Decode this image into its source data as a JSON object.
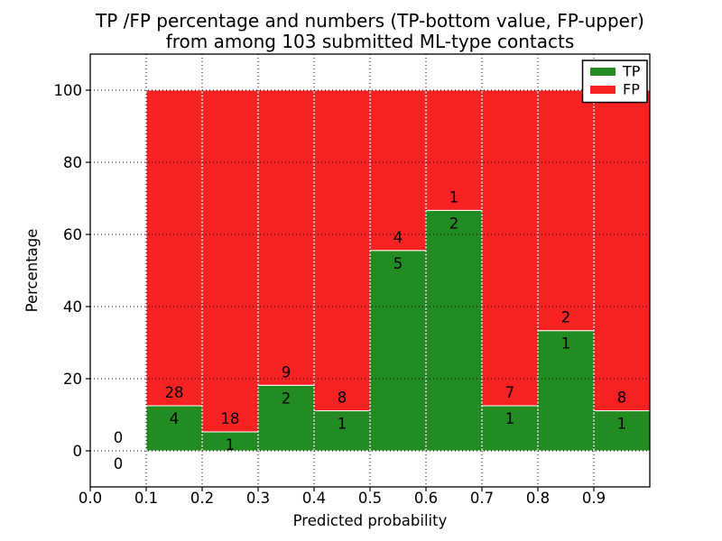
{
  "chart_data": {
    "type": "bar",
    "stacked": true,
    "title_line1": "TP /FP percentage and numbers (TP-bottom value, FP-upper)",
    "title_line2": "from among 103 submitted ML-type contacts",
    "xlabel": "Predicted probability",
    "ylabel": "Percentage",
    "xlim": [
      0.0,
      1.0
    ],
    "ylim": [
      -10,
      110
    ],
    "bin_width": 0.1,
    "grid": "dotted",
    "legend_position": "upper right",
    "legend": [
      {
        "label": "TP",
        "color": "#228b22"
      },
      {
        "label": "FP",
        "color": "#f92222"
      }
    ],
    "colors": {
      "tp": "#228b22",
      "fp": "#f92222",
      "bar_edge": "#ffffff",
      "grid": "#000000"
    },
    "xticks": [
      {
        "v": 0.0,
        "label": "0.0"
      },
      {
        "v": 0.1,
        "label": "0.1"
      },
      {
        "v": 0.2,
        "label": "0.2"
      },
      {
        "v": 0.3,
        "label": "0.3"
      },
      {
        "v": 0.4,
        "label": "0.4"
      },
      {
        "v": 0.5,
        "label": "0.5"
      },
      {
        "v": 0.6,
        "label": "0.6"
      },
      {
        "v": 0.7,
        "label": "0.7"
      },
      {
        "v": 0.8,
        "label": "0.8"
      },
      {
        "v": 0.9,
        "label": "0.9"
      }
    ],
    "yticks": [
      {
        "v": 0,
        "label": "0"
      },
      {
        "v": 20,
        "label": "20"
      },
      {
        "v": 40,
        "label": "40"
      },
      {
        "v": 60,
        "label": "60"
      },
      {
        "v": 80,
        "label": "80"
      },
      {
        "v": 100,
        "label": "100"
      }
    ],
    "bins": [
      {
        "range": "0.0-0.1",
        "x0": 0.0,
        "tp": 0,
        "fp": 0,
        "tp_pct": 0,
        "fp_top_pct": 0
      },
      {
        "range": "0.1-0.2",
        "x0": 0.1,
        "tp": 4,
        "fp": 28,
        "tp_pct": 12.5,
        "fp_top_pct": 100
      },
      {
        "range": "0.2-0.3",
        "x0": 0.2,
        "tp": 1,
        "fp": 18,
        "tp_pct": 5.26,
        "fp_top_pct": 100
      },
      {
        "range": "0.3-0.4",
        "x0": 0.3,
        "tp": 2,
        "fp": 9,
        "tp_pct": 18.18,
        "fp_top_pct": 100
      },
      {
        "range": "0.4-0.5",
        "x0": 0.4,
        "tp": 1,
        "fp": 8,
        "tp_pct": 11.11,
        "fp_top_pct": 100
      },
      {
        "range": "0.5-0.6",
        "x0": 0.5,
        "tp": 5,
        "fp": 4,
        "tp_pct": 55.56,
        "fp_top_pct": 100
      },
      {
        "range": "0.6-0.7",
        "x0": 0.6,
        "tp": 2,
        "fp": 1,
        "tp_pct": 66.67,
        "fp_top_pct": 100
      },
      {
        "range": "0.7-0.8",
        "x0": 0.7,
        "tp": 1,
        "fp": 7,
        "tp_pct": 12.5,
        "fp_top_pct": 100
      },
      {
        "range": "0.8-0.9",
        "x0": 0.8,
        "tp": 1,
        "fp": 2,
        "tp_pct": 33.33,
        "fp_top_pct": 100
      },
      {
        "range": "0.9-1.0",
        "x0": 0.9,
        "tp": 1,
        "fp": 8,
        "tp_pct": 11.11,
        "fp_top_pct": 100
      }
    ]
  }
}
